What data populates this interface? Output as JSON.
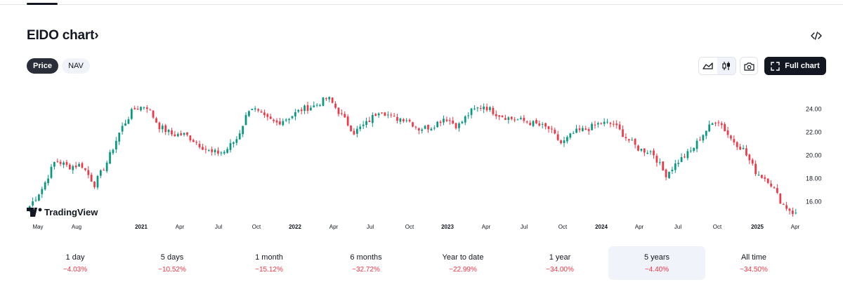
{
  "header": {
    "title": "EIDO chart",
    "chevron": "›",
    "embed_icon": "code-icon"
  },
  "toggles": [
    {
      "label": "Price",
      "active": true
    },
    {
      "label": "NAV",
      "active": false
    }
  ],
  "toolbar": {
    "line_icon": "area-chart-icon",
    "candle_icon": "candles-icon",
    "selected": "candles",
    "camera_icon": "camera-icon",
    "full_chart_label": "Full chart",
    "full_chart_icon": "fullscreen-icon"
  },
  "watermark": "TradingView",
  "colors": {
    "up": "#089981",
    "down": "#f23645",
    "text": "#131722",
    "muted": "#6a6d78"
  },
  "chart_data": {
    "type": "candlestick",
    "y_ticks": [
      "24.00",
      "22.00",
      "20.00",
      "18.00",
      "16.00"
    ],
    "ylim": [
      14.5,
      25.8
    ],
    "x_ticks": [
      "May",
      "Aug",
      "2021",
      "Apr",
      "Jul",
      "Oct",
      "2022",
      "Apr",
      "Jul",
      "Oct",
      "2023",
      "Apr",
      "Jul",
      "Oct",
      "2024",
      "Apr",
      "Jul",
      "Oct",
      "2025",
      "Apr"
    ],
    "x_ticks_bold": [
      "2021",
      "2022",
      "2023",
      "2024",
      "2025"
    ],
    "close_path": [
      [
        "2020-05",
        15.6
      ],
      [
        "2020-06",
        17.2
      ],
      [
        "2020-07",
        19.6
      ],
      [
        "2020-08",
        19.0
      ],
      [
        "2020-09",
        19.2
      ],
      [
        "2020-10",
        17.5
      ],
      [
        "2020-11",
        19.5
      ],
      [
        "2020-12",
        22.2
      ],
      [
        "2021-01",
        24.0
      ],
      [
        "2021-02",
        24.3
      ],
      [
        "2021-03",
        22.5
      ],
      [
        "2021-04",
        21.8
      ],
      [
        "2021-05",
        21.8
      ],
      [
        "2021-06",
        21.0
      ],
      [
        "2021-07",
        20.2
      ],
      [
        "2021-08",
        20.3
      ],
      [
        "2021-09",
        21.5
      ],
      [
        "2021-10",
        24.3
      ],
      [
        "2021-11",
        23.3
      ],
      [
        "2021-12",
        22.8
      ],
      [
        "2022-01",
        23.3
      ],
      [
        "2022-02",
        24.0
      ],
      [
        "2022-03",
        24.3
      ],
      [
        "2022-04",
        25.0
      ],
      [
        "2022-05",
        23.5
      ],
      [
        "2022-06",
        22.0
      ],
      [
        "2022-07",
        22.8
      ],
      [
        "2022-08",
        24.0
      ],
      [
        "2022-09",
        23.2
      ],
      [
        "2022-10",
        23.2
      ],
      [
        "2022-11",
        22.3
      ],
      [
        "2022-12",
        22.5
      ],
      [
        "2023-01",
        23.3
      ],
      [
        "2023-02",
        22.5
      ],
      [
        "2023-03",
        23.8
      ],
      [
        "2023-04",
        24.3
      ],
      [
        "2023-05",
        23.6
      ],
      [
        "2023-06",
        23.2
      ],
      [
        "2023-07",
        23.0
      ],
      [
        "2023-08",
        22.7
      ],
      [
        "2023-09",
        22.3
      ],
      [
        "2023-10",
        21.0
      ],
      [
        "2023-11",
        22.0
      ],
      [
        "2023-12",
        22.3
      ],
      [
        "2024-01",
        22.8
      ],
      [
        "2024-02",
        22.7
      ],
      [
        "2024-03",
        21.5
      ],
      [
        "2024-04",
        20.5
      ],
      [
        "2024-05",
        20.3
      ],
      [
        "2024-06",
        18.3
      ],
      [
        "2024-07",
        19.5
      ],
      [
        "2024-08",
        20.4
      ],
      [
        "2024-09",
        22.0
      ],
      [
        "2024-10",
        23.2
      ],
      [
        "2024-11",
        21.5
      ],
      [
        "2024-12",
        20.5
      ],
      [
        "2025-01",
        18.5
      ],
      [
        "2025-02",
        17.8
      ],
      [
        "2025-03",
        15.8
      ],
      [
        "2025-04",
        14.9
      ]
    ]
  },
  "periods": [
    {
      "label": "1 day",
      "change": "−4.03%"
    },
    {
      "label": "5 days",
      "change": "−10.52%"
    },
    {
      "label": "1 month",
      "change": "−15.12%"
    },
    {
      "label": "6 months",
      "change": "−32.72%"
    },
    {
      "label": "Year to date",
      "change": "−22.99%"
    },
    {
      "label": "1 year",
      "change": "−34.00%"
    },
    {
      "label": "5 years",
      "change": "−4.40%",
      "selected": true
    },
    {
      "label": "All time",
      "change": "−34.50%"
    }
  ]
}
